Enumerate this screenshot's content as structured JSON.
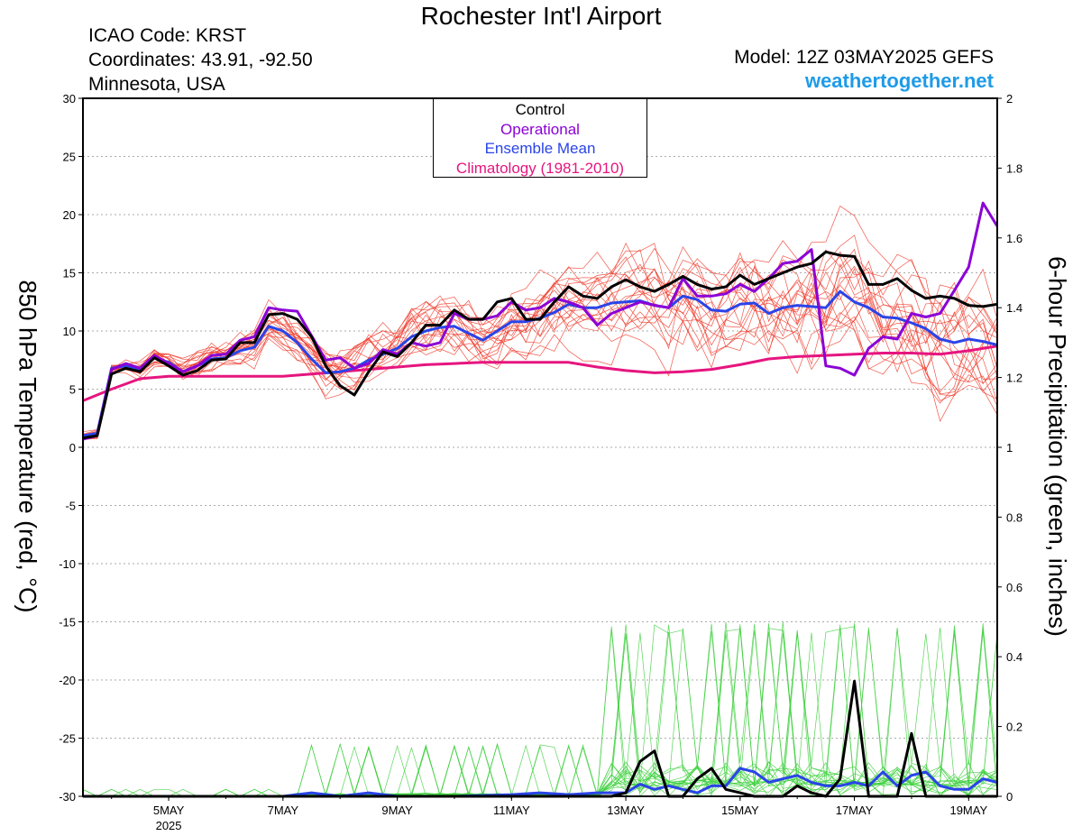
{
  "header": {
    "title": "Rochester Int'l Airport",
    "icao": "ICAO Code: KRST",
    "coords": "Coordinates: 43.91, -92.50",
    "region": "Minnesota, USA",
    "model": "Model: 12Z 03MAY2025 GEFS",
    "site": "weathertogether.net"
  },
  "colors": {
    "control": "#000000",
    "operational": "#8b00d6",
    "mean": "#2a44e8",
    "climatology": "#e6157f",
    "members_temp": "#f03a2a",
    "members_precip": "#3ccf3c",
    "site": "#1e9be8"
  },
  "chart_data": {
    "type": "line",
    "ylabel": "850 hPa Temperature (red, °C)",
    "y2label": "6-hour Precipitation (green, inches)",
    "ylim": [
      -30,
      30
    ],
    "y2lim": [
      0,
      2
    ],
    "yticks": [
      "30",
      "25",
      "20",
      "15",
      "10",
      "5",
      "0",
      "-5",
      "-10",
      "-15",
      "-20",
      "-25",
      "-30"
    ],
    "y2ticks": [
      "2",
      "1.8",
      "1.6",
      "1.4",
      "1.2",
      "1",
      "0.8",
      "0.6",
      "0.4",
      "0.2",
      "0"
    ],
    "xticks": [
      "5MAY",
      "7MAY",
      "9MAY",
      "11MAY",
      "13MAY",
      "15MAY",
      "17MAY",
      "19MAY"
    ],
    "xticks_day": [
      5,
      7,
      9,
      11,
      13,
      15,
      17,
      19
    ],
    "x_year": "2025",
    "xlim_days": [
      3.5,
      19.5
    ],
    "legend": [
      "Control",
      "Operational",
      "Ensemble Mean",
      "Climatology (1981-2010)"
    ],
    "series": [
      {
        "name": "Control",
        "axis": "temp",
        "x": [
          3.5,
          3.75,
          4,
          4.25,
          4.5,
          4.75,
          5,
          5.25,
          5.5,
          5.75,
          6,
          6.25,
          6.5,
          6.75,
          7,
          7.25,
          7.5,
          7.75,
          8,
          8.25,
          8.5,
          8.75,
          9,
          9.25,
          9.5,
          9.75,
          10,
          10.25,
          10.5,
          10.75,
          11,
          11.25,
          11.5,
          11.75,
          12,
          12.25,
          12.5,
          12.75,
          13,
          13.25,
          13.5,
          13.75,
          14,
          14.25,
          14.5,
          14.75,
          15,
          15.25,
          15.5,
          15.75,
          16,
          16.25,
          16.5,
          16.75,
          17,
          17.25,
          17.5,
          17.75,
          18,
          18.25,
          18.5,
          18.75,
          19,
          19.25,
          19.5
        ],
        "y": [
          0.8,
          1.0,
          6.3,
          6.8,
          6.5,
          7.7,
          7.0,
          6.2,
          6.6,
          7.5,
          7.6,
          9.0,
          9.0,
          11.4,
          11.5,
          11.0,
          9.5,
          7.0,
          5.3,
          4.5,
          6.5,
          8.2,
          7.8,
          9.0,
          10.5,
          10.5,
          11.8,
          11.0,
          11.0,
          12.5,
          12.8,
          11.0,
          11.0,
          12.5,
          13.8,
          13.0,
          12.8,
          13.8,
          14.4,
          13.8,
          13.4,
          14.0,
          14.7,
          14.0,
          13.6,
          13.8,
          14.8,
          14.0,
          14.5,
          15.0,
          15.5,
          15.8,
          16.8,
          16.5,
          16.4,
          14.0,
          14.0,
          14.5,
          13.5,
          12.8,
          13.0,
          12.8,
          12.2,
          12.1,
          12.3
        ]
      },
      {
        "name": "Operational",
        "axis": "temp",
        "x": [
          3.5,
          3.75,
          4,
          4.25,
          4.5,
          4.75,
          5,
          5.25,
          5.5,
          5.75,
          6,
          6.25,
          6.5,
          6.75,
          7,
          7.25,
          7.5,
          7.75,
          8,
          8.25,
          8.5,
          8.75,
          9,
          9.25,
          9.5,
          9.75,
          10,
          10.25,
          10.5,
          10.75,
          11,
          11.25,
          11.5,
          11.75,
          12,
          12.25,
          12.5,
          12.75,
          13,
          13.25,
          13.5,
          13.75,
          14,
          14.25,
          14.5,
          14.75,
          15,
          15.25,
          15.5,
          15.75,
          16,
          16.25,
          16.5,
          16.75,
          17,
          17.25,
          17.5,
          17.75,
          18,
          18.25,
          18.5,
          18.75,
          19,
          19.25,
          19.5
        ],
        "y": [
          0.7,
          1.0,
          6.7,
          7.2,
          6.8,
          7.9,
          7.2,
          6.5,
          7.0,
          7.9,
          8.0,
          9.2,
          9.5,
          12.0,
          11.8,
          11.7,
          9.6,
          7.5,
          7.7,
          6.8,
          7.2,
          8.4,
          8.0,
          9.0,
          8.7,
          9.0,
          11.5,
          11.0,
          11.0,
          11.3,
          12.5,
          11.8,
          12.0,
          12.8,
          12.5,
          12.0,
          10.5,
          11.5,
          12.0,
          12.5,
          12.2,
          12.0,
          14.5,
          13.0,
          13.0,
          13.2,
          14.0,
          13.4,
          14.5,
          15.8,
          16.0,
          17.0,
          7.0,
          6.8,
          6.2,
          8.5,
          9.5,
          9.3,
          11.5,
          11.2,
          11.5,
          13.5,
          15.5,
          21.0,
          19.0
        ]
      },
      {
        "name": "Ensemble Mean",
        "axis": "temp",
        "x": [
          3.5,
          3.75,
          4,
          4.25,
          4.5,
          4.75,
          5,
          5.25,
          5.5,
          5.75,
          6,
          6.25,
          6.5,
          6.75,
          7,
          7.25,
          7.5,
          7.75,
          8,
          8.25,
          8.5,
          8.75,
          9,
          9.25,
          9.5,
          9.75,
          10,
          10.25,
          10.5,
          10.75,
          11,
          11.25,
          11.5,
          11.75,
          12,
          12.25,
          12.5,
          12.75,
          13,
          13.25,
          13.5,
          13.75,
          14,
          14.25,
          14.5,
          14.75,
          15,
          15.25,
          15.5,
          15.75,
          16,
          16.25,
          16.5,
          16.75,
          17,
          17.25,
          17.5,
          17.75,
          18,
          18.25,
          18.5,
          18.75,
          19,
          19.25,
          19.5
        ],
        "y": [
          1.0,
          1.2,
          6.8,
          7.0,
          6.6,
          7.7,
          7.3,
          6.5,
          7.0,
          7.6,
          7.7,
          8.3,
          8.6,
          10.4,
          10.0,
          9.0,
          7.6,
          6.4,
          6.5,
          6.8,
          7.5,
          8.0,
          8.5,
          9.5,
          10.0,
          10.3,
          10.4,
          9.8,
          9.2,
          10.0,
          10.8,
          10.8,
          11.1,
          11.6,
          12.3,
          12.0,
          12.0,
          12.4,
          12.5,
          12.6,
          12.2,
          12.0,
          13.0,
          12.7,
          11.8,
          11.7,
          12.3,
          12.4,
          11.5,
          12.0,
          12.2,
          12.1,
          12.0,
          13.4,
          12.5,
          12.0,
          11.2,
          11.1,
          10.7,
          10.2,
          9.3,
          9.0,
          9.3,
          9.1,
          8.8
        ]
      },
      {
        "name": "Climatology (1981-2010)",
        "axis": "temp",
        "x": [
          3.5,
          4,
          4.5,
          5,
          5.5,
          6,
          6.5,
          7,
          7.5,
          8,
          8.5,
          9,
          9.5,
          10,
          10.5,
          11,
          11.5,
          12,
          12.5,
          13,
          13.5,
          14,
          14.5,
          15,
          15.5,
          16,
          16.5,
          17,
          17.5,
          18,
          18.5,
          19,
          19.5
        ],
        "y": [
          4.0,
          5.0,
          5.9,
          6.1,
          6.1,
          6.1,
          6.1,
          6.1,
          6.3,
          6.5,
          6.7,
          6.9,
          7.1,
          7.2,
          7.3,
          7.3,
          7.3,
          7.3,
          6.9,
          6.6,
          6.4,
          6.5,
          6.7,
          7.1,
          7.6,
          7.8,
          7.9,
          8.0,
          8.1,
          8.1,
          8.0,
          8.3,
          8.7
        ]
      },
      {
        "name": "Control",
        "axis": "precip",
        "x": [
          3.5,
          4,
          5,
          6,
          7,
          8,
          9,
          10,
          11,
          12,
          12.5,
          12.75,
          13,
          13.25,
          13.5,
          13.75,
          14,
          14.25,
          14.5,
          14.75,
          15,
          15.25,
          15.5,
          15.75,
          16,
          16.25,
          16.5,
          16.75,
          17,
          17.25,
          17.5,
          17.75,
          18,
          18.25,
          18.5,
          18.75,
          19,
          19.5
        ],
        "y": [
          0,
          0,
          0,
          0,
          0,
          0,
          0,
          0,
          0,
          0,
          0,
          0,
          0.01,
          0.1,
          0.13,
          0,
          0,
          0.05,
          0.08,
          0.02,
          0.01,
          0,
          0,
          0,
          0.03,
          0.01,
          0,
          0.05,
          0.33,
          0,
          0,
          0,
          0.18,
          0,
          0,
          0,
          0,
          0
        ]
      },
      {
        "name": "Ensemble Mean",
        "axis": "precip",
        "x": [
          3.5,
          4,
          5,
          6,
          7,
          7.5,
          8,
          8.5,
          9,
          10,
          11,
          11.5,
          12,
          12.5,
          13,
          13.25,
          13.5,
          13.75,
          14,
          14.25,
          14.5,
          14.75,
          15,
          15.25,
          15.5,
          15.75,
          16,
          16.25,
          16.5,
          16.75,
          17,
          17.25,
          17.5,
          17.75,
          18,
          18.25,
          18.5,
          18.75,
          19,
          19.25,
          19.5
        ],
        "y": [
          0,
          0,
          0,
          0,
          0,
          0.01,
          0,
          0.01,
          0,
          0,
          0.005,
          0.01,
          0.005,
          0.01,
          0.01,
          0.035,
          0.02,
          0.03,
          0.02,
          0.01,
          0.03,
          0.03,
          0.08,
          0.07,
          0.04,
          0.05,
          0.06,
          0.04,
          0.03,
          0.03,
          0.04,
          0.03,
          0.07,
          0.03,
          0.06,
          0.07,
          0.03,
          0.02,
          0.02,
          0.05,
          0.04
        ]
      }
    ]
  }
}
